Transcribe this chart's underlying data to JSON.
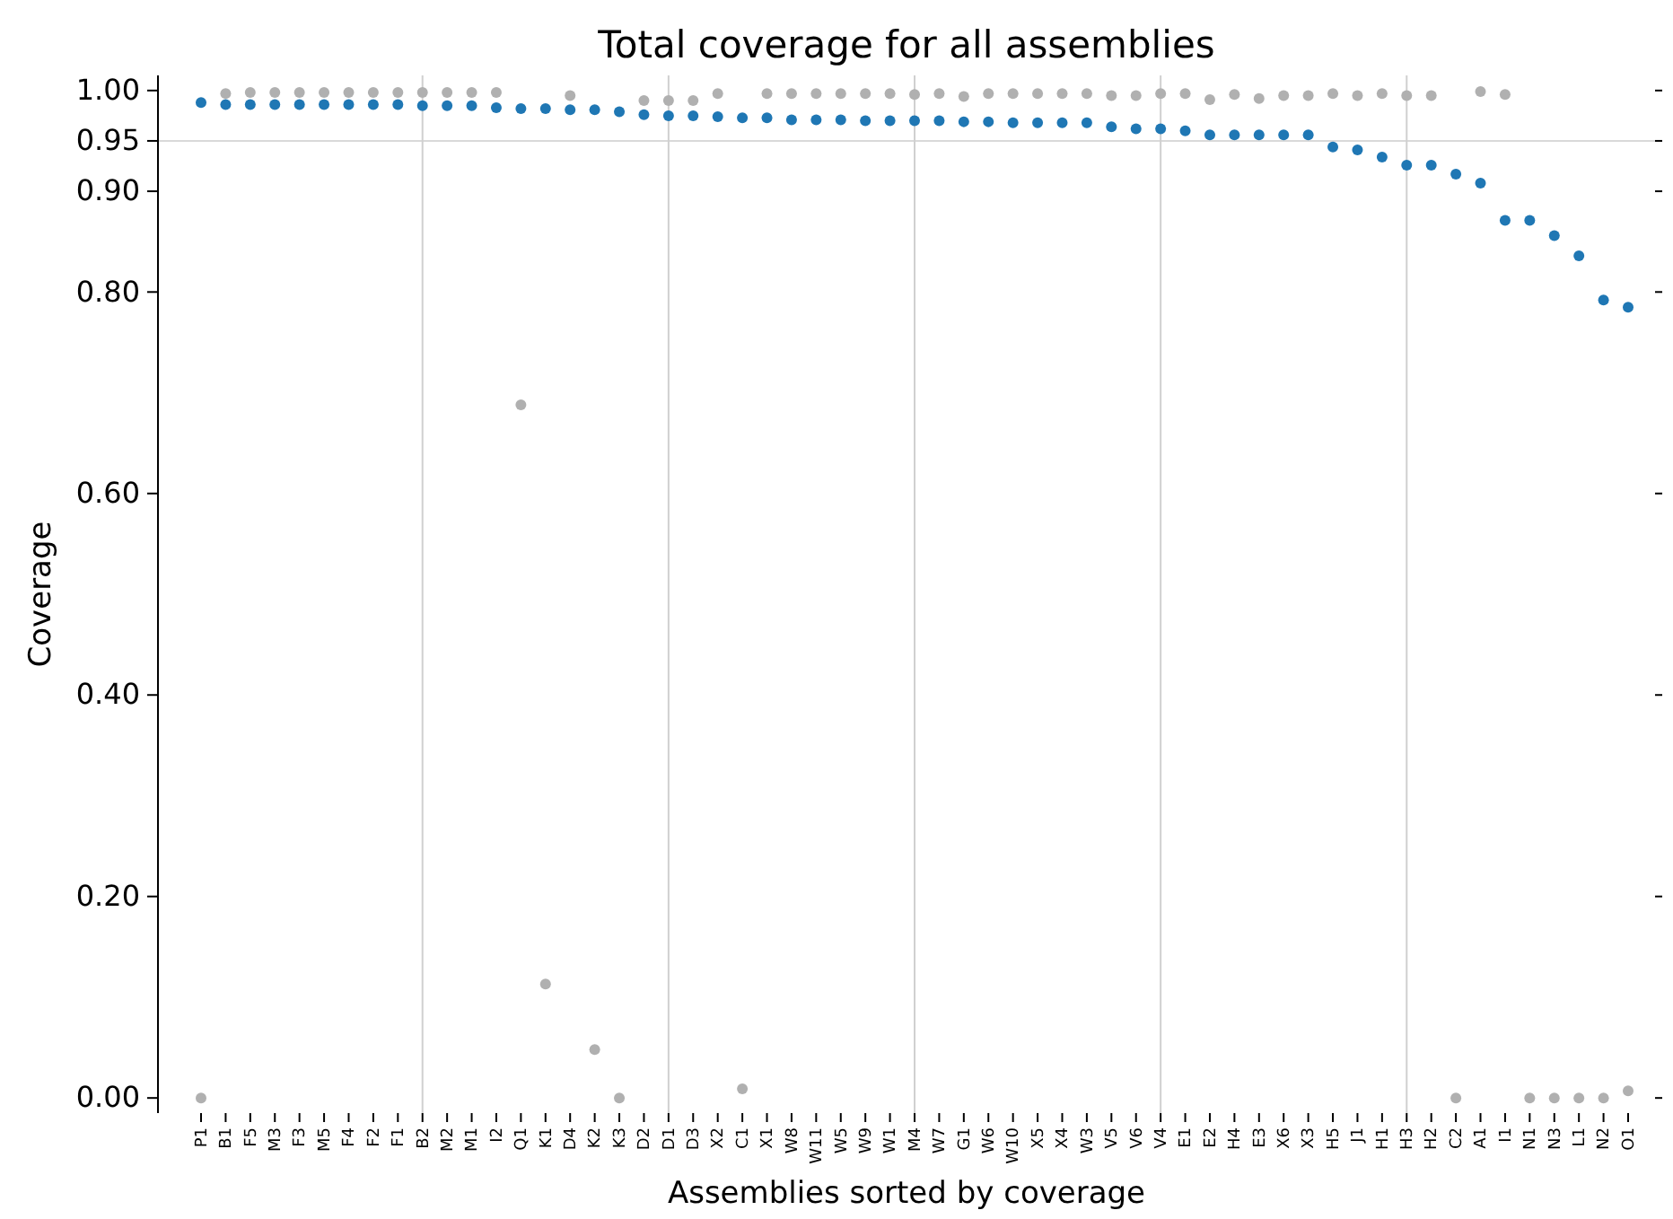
{
  "chart_data": {
    "type": "scatter",
    "title": "Total coverage for all assemblies",
    "xlabel": "Assemblies sorted by coverage",
    "ylabel": "Coverage",
    "categories": [
      "P1",
      "B1",
      "F5",
      "M3",
      "F3",
      "M5",
      "F4",
      "F2",
      "F1",
      "B2",
      "M2",
      "M1",
      "I2",
      "Q1",
      "K1",
      "D4",
      "K2",
      "K3",
      "D2",
      "D1",
      "D3",
      "X2",
      "C1",
      "X1",
      "W8",
      "W11",
      "W5",
      "W9",
      "W1",
      "M4",
      "W7",
      "G1",
      "W6",
      "W10",
      "X5",
      "X4",
      "W3",
      "V5",
      "V6",
      "V4",
      "E1",
      "E2",
      "H4",
      "E3",
      "X6",
      "X3",
      "H5",
      "J1",
      "H1",
      "H3",
      "H2",
      "C2",
      "A1",
      "I1",
      "N1",
      "N3",
      "L1",
      "N2",
      "O1"
    ],
    "series": [
      {
        "color": "#b0b0b0",
        "values": [
          0,
          0.997,
          0.998,
          0.998,
          0.998,
          0.998,
          0.998,
          0.998,
          0.998,
          0.998,
          0.998,
          0.998,
          0.998,
          0.688,
          0.113,
          0.995,
          0.048,
          0,
          0.99,
          0.99,
          0.99,
          0.997,
          0.009,
          0.997,
          0.997,
          0.997,
          0.997,
          0.997,
          0.997,
          0.996,
          0.997,
          0.994,
          0.997,
          0.997,
          0.997,
          0.997,
          0.997,
          0.995,
          0.995,
          0.997,
          0.997,
          0.991,
          0.996,
          0.992,
          0.995,
          0.995,
          0.997,
          0.995,
          0.997,
          0.995,
          0.995,
          0,
          0.999,
          0.996,
          0,
          0,
          0,
          0,
          0.007
        ]
      },
      {
        "color": "#1f77b4",
        "values": [
          0.988,
          0.986,
          0.986,
          0.986,
          0.986,
          0.986,
          0.986,
          0.986,
          0.986,
          0.985,
          0.985,
          0.985,
          0.983,
          0.982,
          0.982,
          0.981,
          0.981,
          0.979,
          0.976,
          0.975,
          0.975,
          0.974,
          0.973,
          0.973,
          0.971,
          0.971,
          0.971,
          0.97,
          0.97,
          0.97,
          0.97,
          0.969,
          0.969,
          0.968,
          0.968,
          0.968,
          0.968,
          0.964,
          0.962,
          0.962,
          0.96,
          0.956,
          0.956,
          0.956,
          0.956,
          0.956,
          0.944,
          0.941,
          0.934,
          0.926,
          0.926,
          0.917,
          0.908,
          0.871,
          0.871,
          0.856,
          0.836,
          0.792,
          0.785
        ]
      }
    ],
    "ylim": [
      -0.015,
      1.015
    ],
    "yticks": [
      {
        "value": 0,
        "label": "0.00"
      },
      {
        "value": 0.2,
        "label": "0.20"
      },
      {
        "value": 0.4,
        "label": "0.40"
      },
      {
        "value": 0.6,
        "label": "0.60"
      },
      {
        "value": 0.8,
        "label": "0.80"
      },
      {
        "value": 0.9,
        "label": "0.90"
      },
      {
        "value": 0.95,
        "label": "0.95"
      },
      {
        "value": 1,
        "label": "1.00"
      }
    ],
    "ref_lines": [
      {
        "axis": "y",
        "value": 0.95,
        "color": "#d9d9d9"
      },
      {
        "axis": "x",
        "value": "B2",
        "color": "#d0d0d0"
      },
      {
        "axis": "x",
        "value": "D1",
        "color": "#d0d0d0"
      },
      {
        "axis": "x",
        "value": "M4",
        "color": "#d0d0d0"
      },
      {
        "axis": "x",
        "value": "V4",
        "color": "#d0d0d0"
      },
      {
        "axis": "x",
        "value": "H3",
        "color": "#d0d0d0"
      }
    ],
    "marker": "circle",
    "grid": false
  }
}
